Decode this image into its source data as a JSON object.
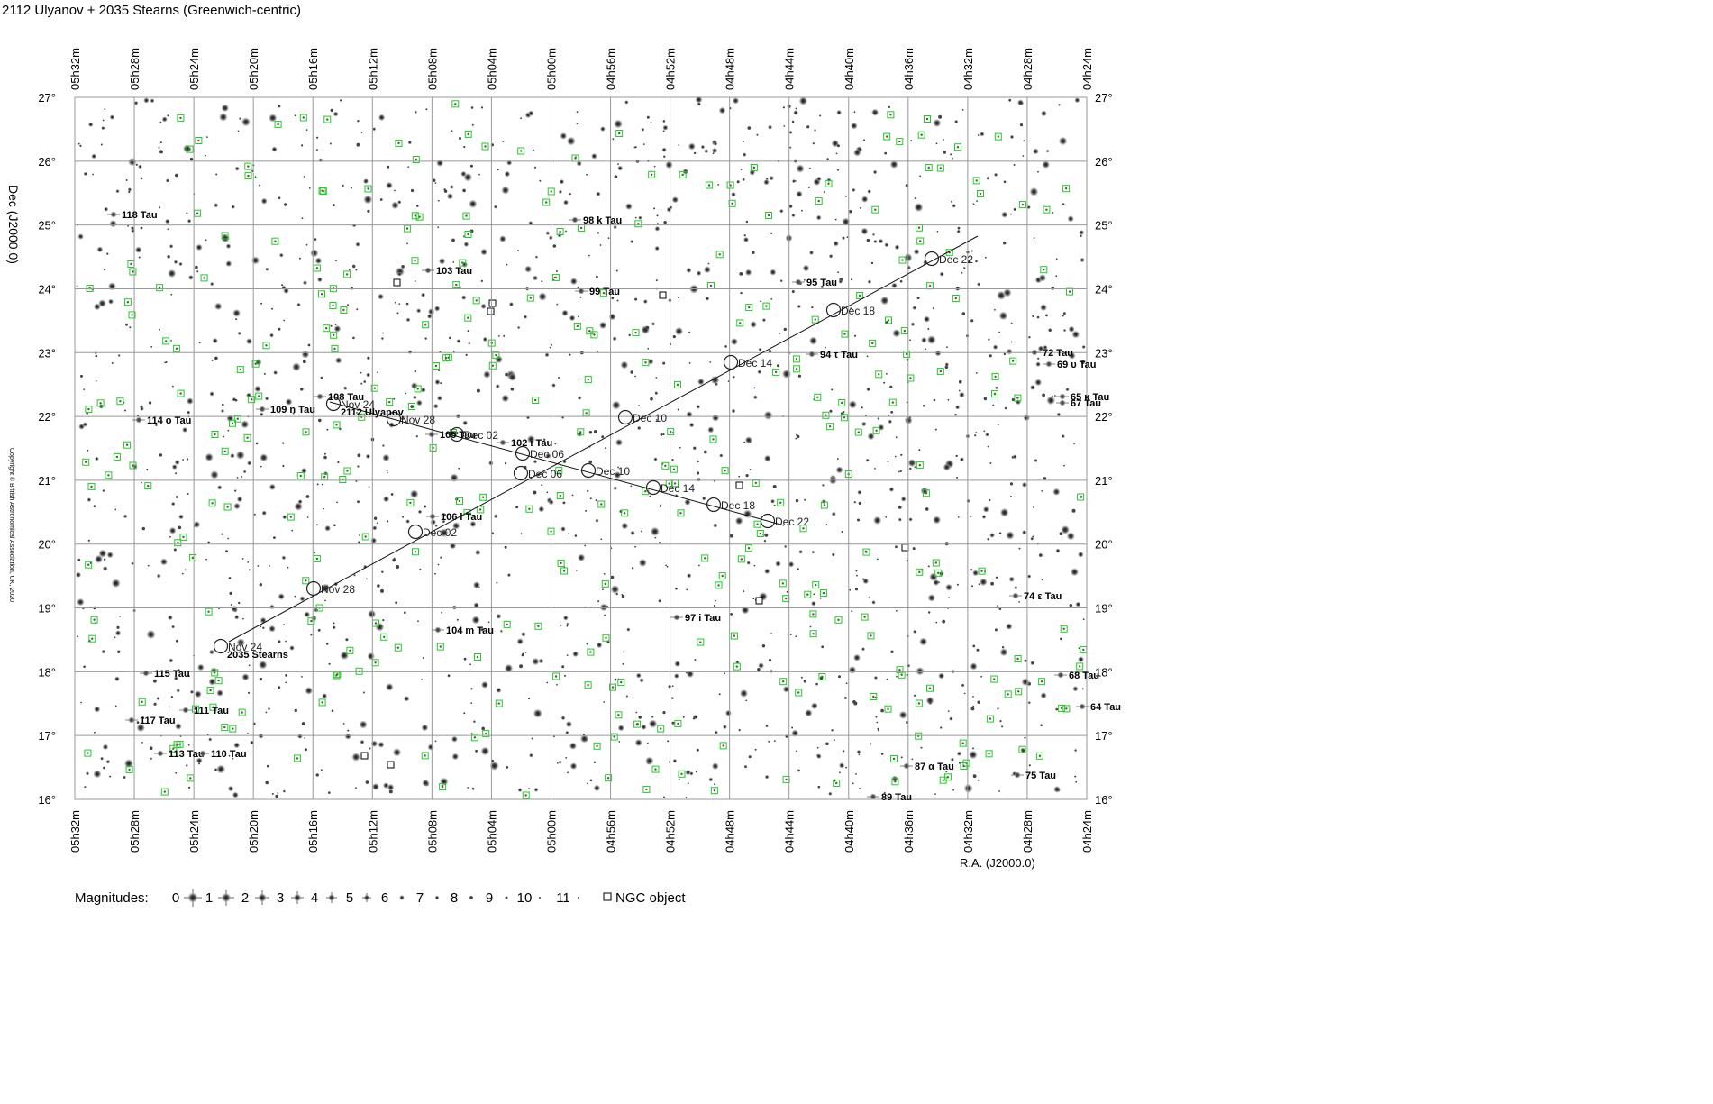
{
  "title": "2112 Ulyanov + 2035 Stearns (Greenwich-centric)",
  "ra_ticks": [
    "05h32m",
    "05h28m",
    "05h24m",
    "05h20m",
    "05h16m",
    "05h12m",
    "05h08m",
    "05h04m",
    "05h00m",
    "04h56m",
    "04h52m",
    "04h48m",
    "04h44m",
    "04h40m",
    "04h36m",
    "04h32m",
    "04h28m",
    "04h24m"
  ],
  "dec_ticks": [
    "27°",
    "26°",
    "25°",
    "24°",
    "23°",
    "22°",
    "21°",
    "20°",
    "19°",
    "18°",
    "17°",
    "16°"
  ],
  "y_axis_label": "Dec (J2000.0)",
  "x_axis_label": "R.A. (J2000.0)",
  "copyright": "Copyright © British Astronomical Association, UK, 2020",
  "star_labels": [
    "118 Tau",
    "98 k Tau",
    "103 Tau",
    "99 Tau",
    "95 Tau",
    "94 τ Tau",
    "72 Tau",
    "69 υ Tau",
    "65 κ Tau",
    "67 Tau",
    "108 Tau",
    "109 n Tau",
    "114 ο Tau",
    "105 Tau",
    "102 ι Tau",
    "106 l Tau",
    "104 m Tau",
    "97 i Tau",
    "74 ε Tau",
    "115 Tau",
    "68 Tau",
    "64 Tau",
    "117 Tau",
    "111 Tau",
    "113 Tau",
    "110 Tau",
    "87 α Tau",
    "75 Tau",
    "89 Tau"
  ],
  "tracks": [
    {
      "name": "2112 Ulyanov",
      "points": [
        "Nov 24",
        "Nov 28",
        "Dec 02",
        "Dec 06",
        "Dec 10",
        "Dec 14",
        "Dec 18",
        "Dec 22"
      ]
    },
    {
      "name": "2035 Stearns",
      "points": [
        "Nov 24",
        "Nov 28",
        "Dec 02",
        "Dec 06",
        "Dec 10",
        "Dec 14",
        "Dec 18",
        "Dec 22"
      ]
    }
  ],
  "legend": {
    "title": "Magnitudes:",
    "magnitudes": [
      "0",
      "1",
      "2",
      "3",
      "4",
      "5",
      "6",
      "7",
      "8",
      "9",
      "10",
      "11"
    ],
    "ngc": "NGC object"
  }
}
